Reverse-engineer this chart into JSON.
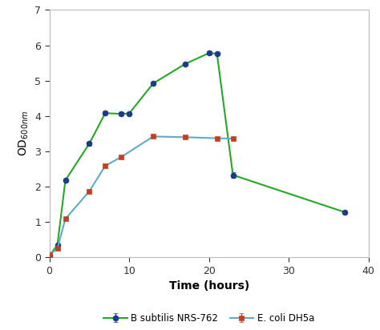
{
  "b_subtilis_x": [
    0,
    1,
    2,
    5,
    7,
    9,
    10,
    13,
    17,
    20,
    21,
    23,
    37
  ],
  "b_subtilis_y": [
    0.05,
    0.35,
    2.18,
    3.22,
    4.08,
    4.06,
    4.07,
    4.92,
    5.47,
    5.78,
    5.76,
    2.33,
    1.28
  ],
  "b_subtilis_yerr": [
    0.0,
    0.02,
    0.04,
    0.06,
    0.05,
    0.05,
    0.04,
    0.0,
    0.0,
    0.04,
    0.03,
    0.08,
    0.03
  ],
  "ecoli_x": [
    0,
    1,
    2,
    5,
    7,
    9,
    13,
    17,
    21,
    23
  ],
  "ecoli_y": [
    0.07,
    0.25,
    1.09,
    1.87,
    2.59,
    2.84,
    3.42,
    3.4,
    3.37,
    3.36
  ],
  "ecoli_yerr": [
    0.01,
    0.02,
    0.03,
    0.04,
    0.04,
    0.05,
    0.03,
    0.02,
    0.03,
    0.03
  ],
  "b_subtilis_line_color": "#22aa22",
  "b_subtilis_marker_facecolor": "#1a3a8a",
  "b_subtilis_marker_edgecolor": "#1a3a8a",
  "ecoli_line_color": "#5aaccc",
  "ecoli_marker_facecolor": "#c04020",
  "ecoli_marker_edgecolor": "#c04020",
  "spine_color": "#bbbbbb",
  "xlim": [
    0,
    40
  ],
  "ylim": [
    0.0,
    7.0
  ],
  "xticks": [
    0,
    10,
    20,
    30,
    40
  ],
  "yticks": [
    0.0,
    1.0,
    2.0,
    3.0,
    4.0,
    5.0,
    6.0,
    7.0
  ],
  "xlabel": "Time (hours)",
  "ylabel": "OD$_{600nm}$",
  "legend_b_subtilis": "B subtilis NRS-762",
  "legend_ecoli": "E. coli DH5a",
  "background_color": "#ffffff",
  "tick_fontsize": 9,
  "label_fontsize": 10,
  "legend_fontsize": 8.5
}
